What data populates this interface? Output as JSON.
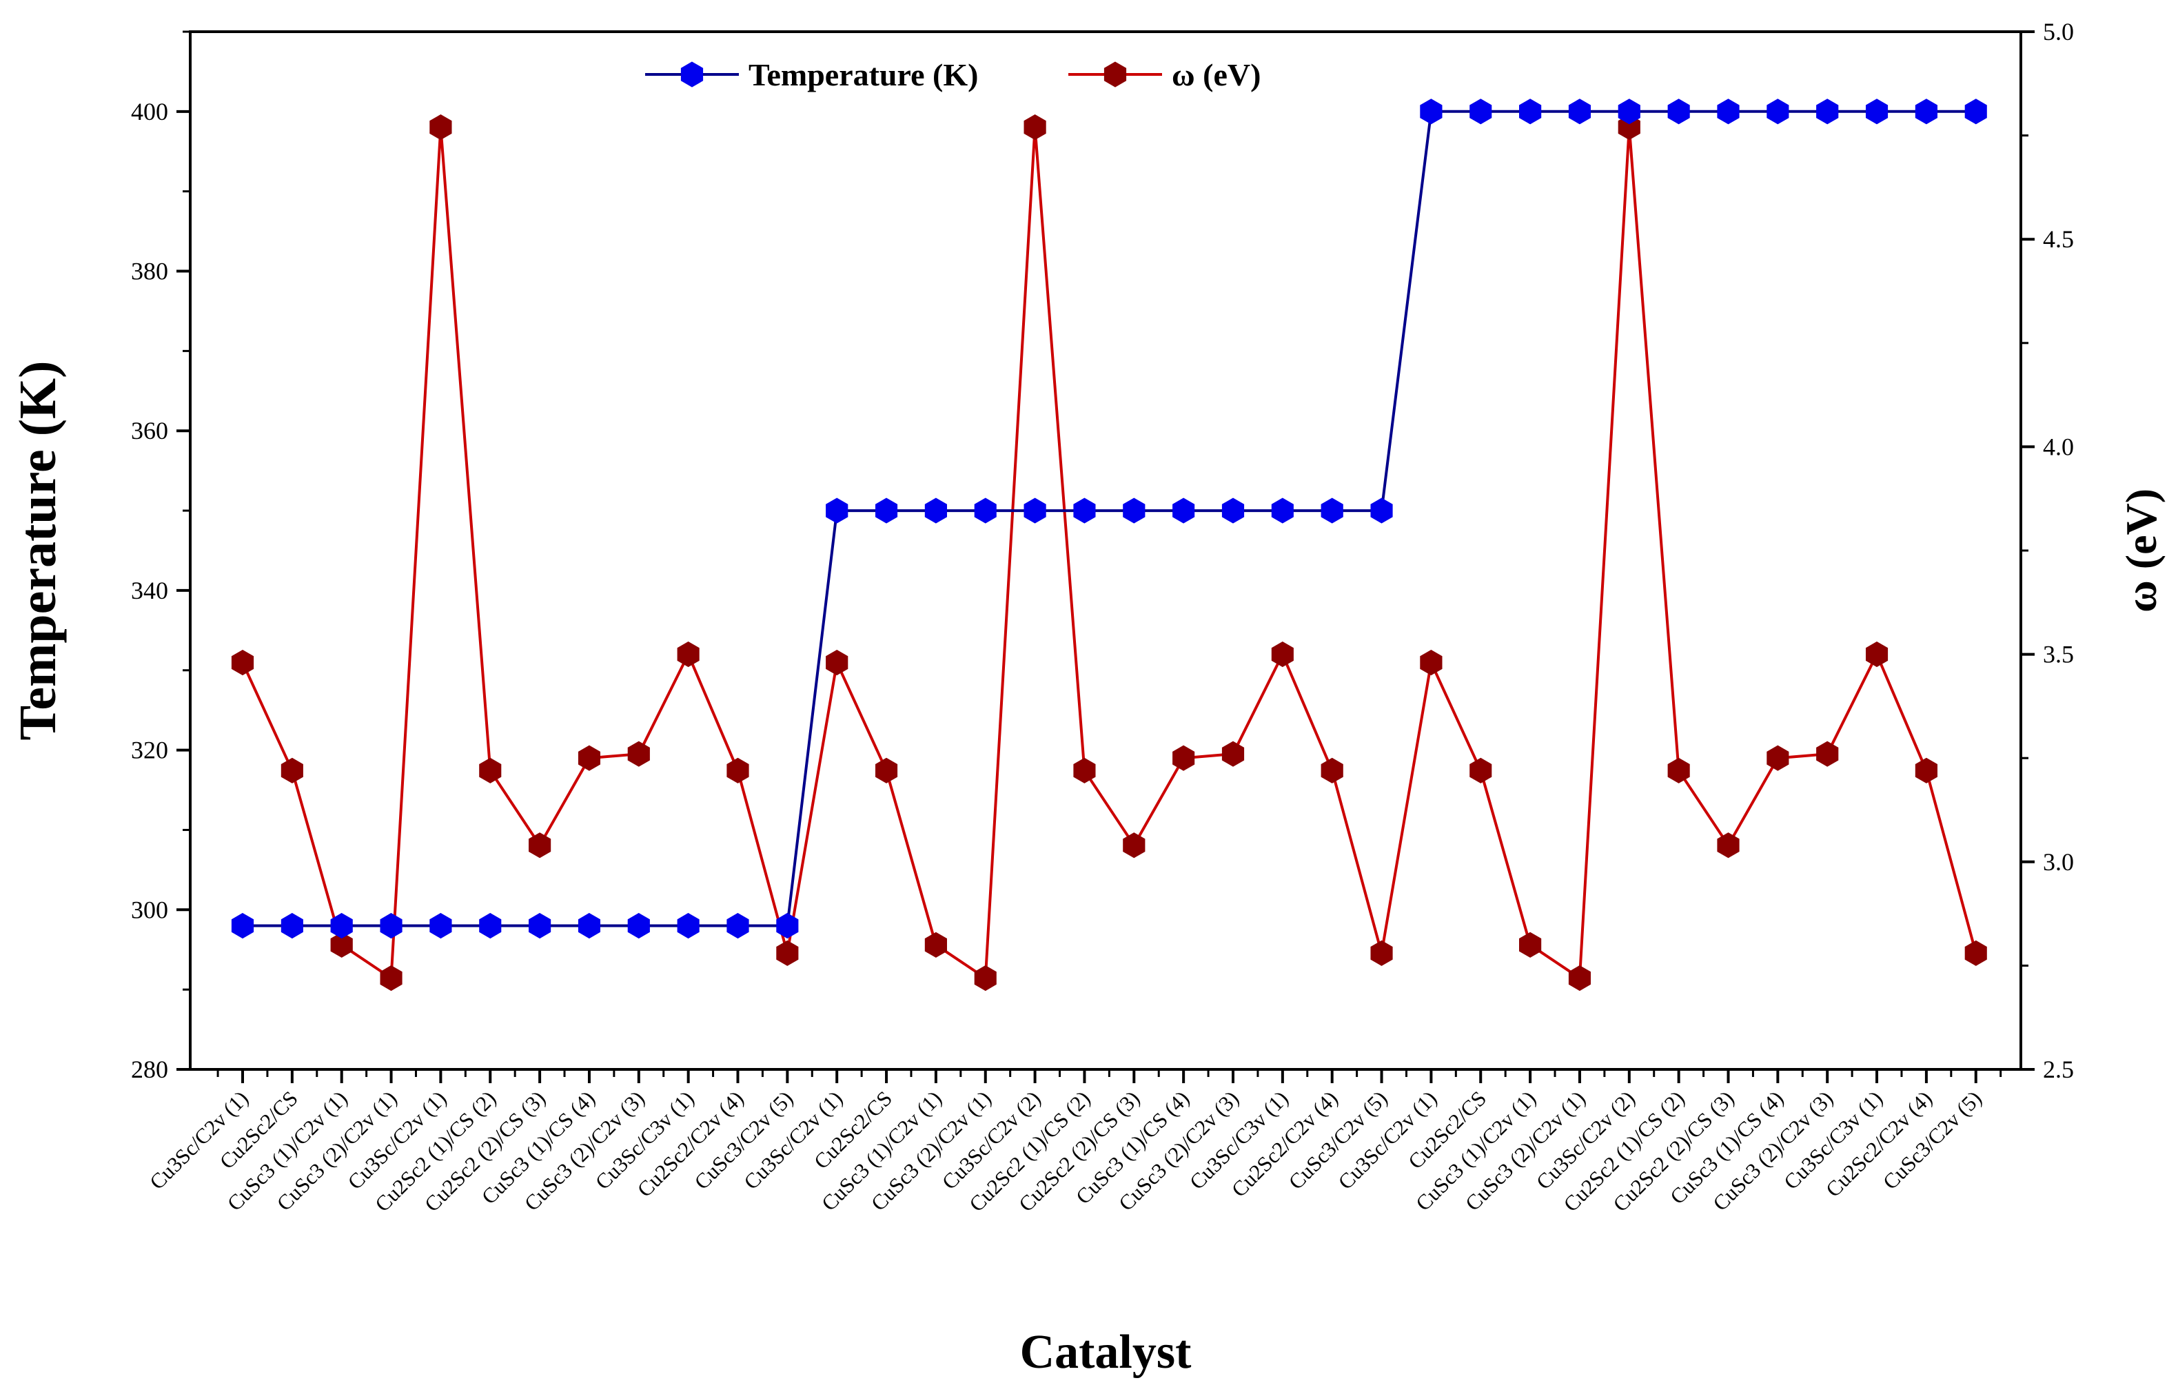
{
  "chart_data": {
    "type": "line",
    "xlabel": "Catalyst",
    "ylabel": "Temperature (K)",
    "y2label": "ω (eV)",
    "ylim": [
      280,
      410
    ],
    "y2lim": [
      2.5,
      5.0
    ],
    "yticks": [
      "280",
      "300",
      "320",
      "340",
      "360",
      "380",
      "400"
    ],
    "y2ticks": [
      "2.5",
      "3.0",
      "3.5",
      "4.0",
      "4.5",
      "5.0"
    ],
    "grid": false,
    "legend_position": "top-center",
    "categories": [
      "Cu3Sc/C2v (1)",
      "Cu2Sc2/CS",
      "CuSc3 (1)/C2v (1)",
      "CuSc3 (2)/C2v (1)",
      "Cu3Sc/C2v (1)",
      "Cu2Sc2 (1)/CS (2)",
      "Cu2Sc2 (2)/CS (3)",
      "CuSc3 (1)/CS (4)",
      "CuSc3 (2)/C2v (3)",
      "Cu3Sc/C3v (1)",
      "Cu2Sc2/C2v (4)",
      "CuSc3/C2v (5)",
      "Cu3Sc/C2v (1)",
      "Cu2Sc2/CS",
      "CuSc3 (1)/C2v (1)",
      "CuSc3 (2)/C2v (1)",
      "Cu3Sc/C2v (2)",
      "Cu2Sc2 (1)/CS (2)",
      "Cu2Sc2 (2)/CS (3)",
      "CuSc3 (1)/CS (4)",
      "CuSc3 (2)/C2v (3)",
      "Cu3Sc/C3v (1)",
      "Cu2Sc2/C2v (4)",
      "CuSc3/C2v (5)",
      "Cu3Sc/C2v (1)",
      "Cu2Sc2/CS",
      "CuSc3 (1)/C2v (1)",
      "CuSc3 (2)/C2v (1)",
      "Cu3Sc/C2v (2)",
      "Cu2Sc2 (1)/CS (2)",
      "Cu2Sc2 (2)/CS (3)",
      "CuSc3 (1)/CS (4)",
      "CuSc3 (2)/C2v (3)",
      "Cu3Sc/C3v (1)",
      "Cu2Sc2/C2v (4)",
      "CuSc3/C2v (5)"
    ],
    "series": [
      {
        "name": "Temperature (K)",
        "axis": "left",
        "color": "#0000ee",
        "line_color": "#00008b",
        "marker": "hexagon",
        "values": [
          298,
          298,
          298,
          298,
          298,
          298,
          298,
          298,
          298,
          298,
          298,
          298,
          350,
          350,
          350,
          350,
          350,
          350,
          350,
          350,
          350,
          350,
          350,
          350,
          400,
          400,
          400,
          400,
          400,
          400,
          400,
          400,
          400,
          400,
          400,
          400
        ]
      },
      {
        "name": "ω (eV)",
        "axis": "right",
        "color": "#8b0000",
        "line_color": "#cc0000",
        "marker": "hexagon",
        "values": [
          3.48,
          3.22,
          2.8,
          2.72,
          4.77,
          3.22,
          3.04,
          3.25,
          3.26,
          3.5,
          3.22,
          2.78,
          3.48,
          3.22,
          2.8,
          2.72,
          4.77,
          3.22,
          3.04,
          3.25,
          3.26,
          3.5,
          3.22,
          2.78,
          3.48,
          3.22,
          2.8,
          2.72,
          4.77,
          3.22,
          3.04,
          3.25,
          3.26,
          3.5,
          3.22,
          2.78
        ]
      }
    ]
  }
}
